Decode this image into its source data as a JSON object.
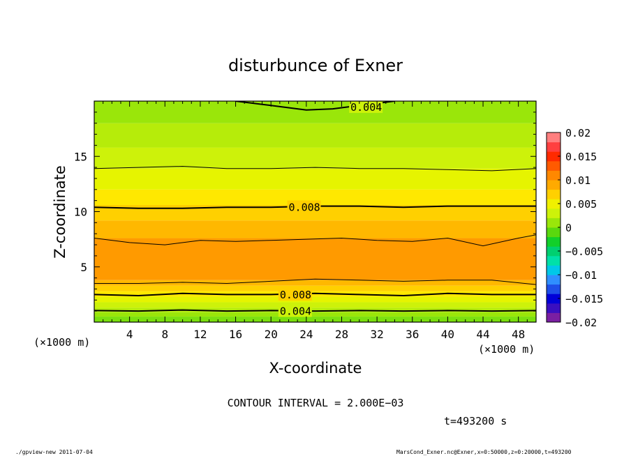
{
  "chart_data": {
    "type": "heatmap",
    "title": "disturbunce of Exner",
    "xlabel": "X-coordinate",
    "ylabel": "Z-coordinate",
    "x_unit": "(×1000 m)",
    "y_unit": "(×1000 m)",
    "xlim": [
      0,
      50
    ],
    "ylim": [
      0,
      20
    ],
    "x_ticks": [
      4,
      8,
      12,
      16,
      20,
      24,
      28,
      32,
      36,
      40,
      44,
      48
    ],
    "y_ticks": [
      5,
      10,
      15
    ],
    "colorbar": {
      "ticks": [
        0.02,
        0.015,
        0.01,
        0.005,
        0,
        -0.005,
        -0.01,
        -0.015,
        -0.02
      ],
      "tick_labels": [
        "0.02",
        "0.015",
        "0.01",
        "0.005",
        "0",
        "−0.005",
        "−0.01",
        "−0.015",
        "−0.02"
      ],
      "min": -0.02,
      "max": 0.02,
      "colors": [
        "#7a1fa2",
        "#3a0fc0",
        "#0000d8",
        "#1e4fe8",
        "#2f8fff",
        "#00c8e8",
        "#00e0a8",
        "#00d070",
        "#12d02a",
        "#5ad80e",
        "#9ae60a",
        "#cdf20a",
        "#f0f000",
        "#ffd000",
        "#ffaa00",
        "#ff8800",
        "#ff5a00",
        "#ff2a00",
        "#ff4040",
        "#ff7f7f"
      ]
    },
    "bands": [
      {
        "range": [
          0.0,
          0.001
        ],
        "color": "#5ad80e"
      },
      {
        "range": [
          0.001,
          0.002
        ],
        "color": "#7ae00e"
      },
      {
        "range": [
          0.002,
          0.003
        ],
        "color": "#9ae60a"
      },
      {
        "range": [
          0.003,
          0.004
        ],
        "color": "#b6ec0a"
      },
      {
        "range": [
          0.004,
          0.005
        ],
        "color": "#cdf20a"
      },
      {
        "range": [
          0.005,
          0.006
        ],
        "color": "#e6f400"
      },
      {
        "range": [
          0.006,
          0.007
        ],
        "color": "#ffe800"
      },
      {
        "range": [
          0.007,
          0.008
        ],
        "color": "#ffd000"
      },
      {
        "range": [
          0.008,
          0.009
        ],
        "color": "#ffb800"
      },
      {
        "range": [
          0.009,
          0.01
        ],
        "color": "#ff9a00"
      }
    ],
    "layers": [
      {
        "z": [
          0.0,
          0.5
        ],
        "value_band": 1
      },
      {
        "z": [
          0.5,
          0.9
        ],
        "value_band": 2
      },
      {
        "z": [
          0.9,
          1.3
        ],
        "value_band": 3
      },
      {
        "z": [
          1.3,
          1.8
        ],
        "value_band": 4
      },
      {
        "z": [
          1.8,
          2.3
        ],
        "value_band": 5
      },
      {
        "z": [
          2.3,
          2.8
        ],
        "value_band": 6
      },
      {
        "z": [
          2.8,
          3.3
        ],
        "value_band": 7
      },
      {
        "z": [
          3.3,
          3.8
        ],
        "value_band": 8
      },
      {
        "z": [
          3.8,
          7.6
        ],
        "value_band": 9
      },
      {
        "z": [
          7.6,
          9.2
        ],
        "value_band": 8
      },
      {
        "z": [
          9.2,
          10.6
        ],
        "value_band": 7
      },
      {
        "z": [
          10.6,
          12.0
        ],
        "value_band": 6
      },
      {
        "z": [
          12.0,
          13.9
        ],
        "value_band": 5
      },
      {
        "z": [
          13.9,
          15.8
        ],
        "value_band": 4
      },
      {
        "z": [
          15.8,
          18.0
        ],
        "value_band": 3
      },
      {
        "z": [
          18.0,
          20.0
        ],
        "value_band": 2
      }
    ],
    "contours": [
      {
        "label": "0.004",
        "x": [
          0,
          5,
          10,
          15,
          20,
          25,
          30,
          35,
          40,
          45,
          50
        ],
        "z": [
          1.05,
          1.0,
          1.1,
          1.0,
          1.05,
          1.0,
          1.05,
          1.0,
          1.05,
          1.0,
          1.05
        ],
        "label_x": 21,
        "bold": true
      },
      {
        "label": "0.008",
        "x": [
          0,
          5,
          10,
          15,
          20,
          25,
          30,
          35,
          40,
          45,
          50
        ],
        "z": [
          2.5,
          2.4,
          2.6,
          2.5,
          2.5,
          2.6,
          2.5,
          2.4,
          2.6,
          2.5,
          2.5
        ],
        "label_x": 21,
        "bold": true
      },
      {
        "label": "",
        "x": [
          0,
          5,
          10,
          15,
          20,
          25,
          30,
          35,
          40,
          45,
          50
        ],
        "z": [
          3.5,
          3.5,
          3.6,
          3.5,
          3.7,
          3.9,
          3.8,
          3.7,
          3.8,
          3.8,
          3.4
        ],
        "bold": false
      },
      {
        "label": "",
        "x": [
          0,
          4,
          8,
          12,
          16,
          20,
          24,
          28,
          32,
          36,
          40,
          44,
          48,
          50
        ],
        "z": [
          7.6,
          7.2,
          7.0,
          7.4,
          7.3,
          7.4,
          7.5,
          7.6,
          7.4,
          7.3,
          7.6,
          6.9,
          7.6,
          7.9
        ],
        "bold": false
      },
      {
        "label": "0.008",
        "x": [
          0,
          5,
          10,
          15,
          20,
          25,
          30,
          35,
          40,
          45,
          50
        ],
        "z": [
          10.4,
          10.3,
          10.3,
          10.4,
          10.4,
          10.5,
          10.5,
          10.4,
          10.5,
          10.5,
          10.5
        ],
        "label_x": 22,
        "bold": true
      },
      {
        "label": "",
        "x": [
          0,
          5,
          10,
          15,
          20,
          25,
          30,
          35,
          40,
          45,
          50
        ],
        "z": [
          13.9,
          14.0,
          14.1,
          13.9,
          13.9,
          14.0,
          13.9,
          13.9,
          13.8,
          13.7,
          13.9
        ],
        "bold": false
      },
      {
        "label": "0.004",
        "x": [
          16,
          20,
          24,
          27,
          30,
          34
        ],
        "z": [
          20.0,
          19.6,
          19.2,
          19.3,
          19.6,
          20.0
        ],
        "label_x": 29,
        "bold": true
      }
    ]
  },
  "contour_interval": "CONTOUR INTERVAL = 2.000E−03",
  "time_label": "t=493200 s",
  "footer_left": "./gpview-new   2011-07-04",
  "footer_right": "MarsCond_Exner.nc@Exner,x=0:50000,z=0:20000,t=493200"
}
